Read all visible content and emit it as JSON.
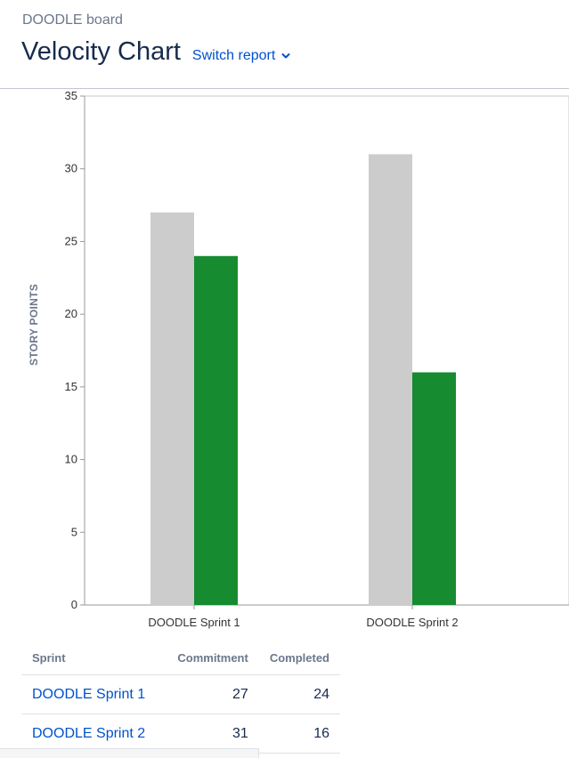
{
  "header": {
    "board_name": "DOODLE board",
    "title": "Velocity Chart",
    "switch_report_label": "Switch report"
  },
  "colors": {
    "commitment": "#cccccc",
    "completed": "#168b30",
    "link": "#0052cc"
  },
  "chart_data": {
    "type": "bar",
    "ylabel": "STORY POINTS",
    "xlabel": "",
    "ylim": [
      0,
      35
    ],
    "yticks": [
      0,
      5,
      10,
      15,
      20,
      25,
      30,
      35
    ],
    "categories": [
      "DOODLE Sprint 1",
      "DOODLE Sprint 2"
    ],
    "series": [
      {
        "key": "commitment",
        "values": [
          27,
          31
        ]
      },
      {
        "key": "completed",
        "values": [
          24,
          16
        ]
      }
    ],
    "grid": false
  },
  "table": {
    "columns": [
      "Sprint",
      "Commitment",
      "Completed"
    ],
    "rows": [
      {
        "sprint": "DOODLE Sprint 1",
        "commitment": "27",
        "completed": "24"
      },
      {
        "sprint": "DOODLE Sprint 2",
        "commitment": "31",
        "completed": "16"
      }
    ]
  }
}
